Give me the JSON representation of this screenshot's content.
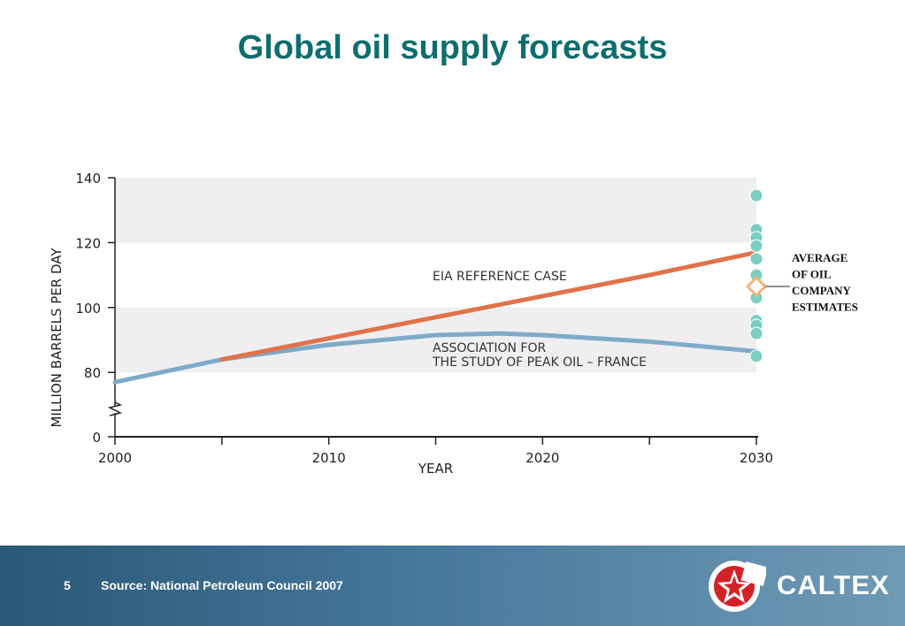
{
  "slide": {
    "title": "Global oil supply forecasts",
    "page_number": "5",
    "source": "Source: National Petroleum Council 2007",
    "brand": "CALTEX"
  },
  "colors": {
    "title": "#0e6e6e",
    "eia": "#e0734a",
    "aspo": "#7eaac8",
    "company_estimates": "#7ccfc0",
    "average_marker": "#f5b47a",
    "band": "#efeff1",
    "footer": "#3f6f8f",
    "logo_red": "#d42027"
  },
  "chart_data": {
    "type": "line",
    "xlabel": "YEAR",
    "ylabel": "MILLION BARRELS PER DAY",
    "xlim": [
      2000,
      2030
    ],
    "ylim_broken": [
      70,
      140
    ],
    "x_ticks": [
      2000,
      2005,
      2010,
      2015,
      2020,
      2025,
      2030
    ],
    "x_tick_labels": [
      "2000",
      "",
      "2010",
      "",
      "2020",
      "",
      "2030"
    ],
    "y_ticks": [
      0,
      80,
      100,
      120,
      140
    ],
    "y_tick_labels": [
      "0",
      "80",
      "100",
      "120",
      "140"
    ],
    "axis_break": true,
    "grid": false,
    "shaded_bands": [
      [
        80,
        100
      ],
      [
        120,
        140
      ]
    ],
    "series": [
      {
        "name": "EIA REFERENCE CASE",
        "x": [
          2005,
          2010,
          2015,
          2020,
          2025,
          2030
        ],
        "values": [
          84,
          90.5,
          97,
          103.5,
          110,
          117
        ]
      },
      {
        "name": "ASSOCIATION FOR THE STUDY OF PEAK OIL – FRANCE",
        "label_lines": [
          "ASSOCIATION FOR",
          "THE STUDY OF PEAK OIL – FRANCE"
        ],
        "x": [
          2000,
          2005,
          2010,
          2015,
          2018,
          2020,
          2025,
          2030
        ],
        "values": [
          77,
          84,
          88.5,
          91.5,
          92,
          91.5,
          89.5,
          86.5
        ]
      }
    ],
    "company_estimates": {
      "x": 2030,
      "values": [
        134.5,
        124,
        121.5,
        119,
        115,
        110,
        103,
        96,
        94.5,
        92,
        85
      ]
    },
    "average_estimate": {
      "label_lines": [
        "AVERAGE",
        "OF OIL",
        "COMPANY",
        "ESTIMATES"
      ],
      "x": 2030,
      "value": 106.5
    }
  }
}
